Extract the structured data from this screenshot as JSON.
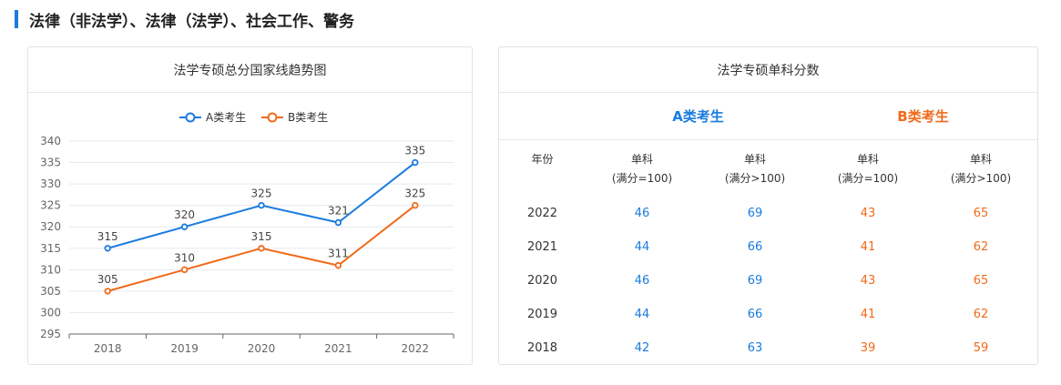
{
  "section": {
    "title": "法律（非法学）、法律（法学）、社会工作、警务"
  },
  "left_card": {
    "title": "法学专硕总分国家线趋势图"
  },
  "right_card": {
    "title": "法学专硕单科分数"
  },
  "chart_data": {
    "type": "line",
    "title": "法学专硕总分国家线趋势图",
    "categories": [
      "2018",
      "2019",
      "2020",
      "2021",
      "2022"
    ],
    "series": [
      {
        "name": "A类考生",
        "color": "#1a7be0",
        "values": [
          315,
          320,
          325,
          321,
          335
        ]
      },
      {
        "name": "B类考生",
        "color": "#f06a1a",
        "values": [
          305,
          310,
          315,
          311,
          325
        ]
      }
    ],
    "ylim": [
      295,
      340
    ],
    "yticks": [
      295,
      300,
      305,
      310,
      315,
      320,
      325,
      330,
      335,
      340
    ],
    "grid": true,
    "legend": "top-center",
    "xlabel": "",
    "ylabel": ""
  },
  "table": {
    "group_a": "A类考生",
    "group_b": "B类考生",
    "year_header": "年份",
    "sub_line1": "单科",
    "sub_100": "(满分=100)",
    "sub_gt100": "(满分>100)",
    "rows": [
      {
        "year": "2022",
        "a1": "46",
        "a2": "69",
        "b1": "43",
        "b2": "65"
      },
      {
        "year": "2021",
        "a1": "44",
        "a2": "66",
        "b1": "41",
        "b2": "62"
      },
      {
        "year": "2020",
        "a1": "46",
        "a2": "69",
        "b1": "43",
        "b2": "65"
      },
      {
        "year": "2019",
        "a1": "44",
        "a2": "66",
        "b1": "41",
        "b2": "62"
      },
      {
        "year": "2018",
        "a1": "42",
        "a2": "63",
        "b1": "39",
        "b2": "59"
      }
    ]
  }
}
